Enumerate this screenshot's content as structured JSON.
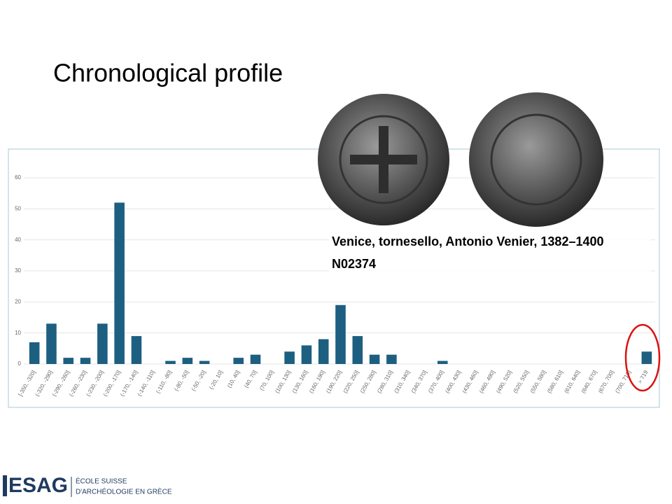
{
  "chart_data": {
    "type": "bar",
    "title": "Chronological profile",
    "categories": [
      "[-350, -320]",
      "(-320, -290]",
      "(-290, -260]",
      "(-260, -230]",
      "(-230, -200]",
      "(-200, -170]",
      "(-170, -140]",
      "(-140, -110]",
      "(-110, -80]",
      "(-80, -50]",
      "(-50, -20]",
      "(-20, 10]",
      "(10, 40]",
      "(40, 70]",
      "(70, 100]",
      "(100, 130]",
      "(130, 160]",
      "(160, 190]",
      "(190, 220]",
      "(220, 250]",
      "(250, 280]",
      "(280, 310]",
      "(310, 340]",
      "(340, 370]",
      "(370, 400]",
      "(400, 430]",
      "(430, 460]",
      "(460, 490]",
      "(490, 520]",
      "(520, 550]",
      "(550, 580]",
      "(580, 610]",
      "(610, 640]",
      "(640, 670]",
      "(670, 700]",
      "(700, 719]",
      "> 719"
    ],
    "values": [
      7,
      13,
      2,
      2,
      13,
      52,
      9,
      0,
      1,
      2,
      1,
      0,
      2,
      3,
      0,
      4,
      6,
      8,
      19,
      9,
      3,
      3,
      0,
      0,
      1,
      0,
      0,
      0,
      0,
      0,
      0,
      0,
      0,
      0,
      0,
      0,
      4
    ],
    "color": "#1d5f80",
    "ylim": [
      0,
      60
    ],
    "yticks": [
      0,
      10,
      20,
      30,
      40,
      50,
      60
    ],
    "grid": true,
    "annotations": [
      "Venice, tornesello, Antonio Venier, 1382–1400",
      "N02374"
    ]
  },
  "footer": {
    "logo": "ESAG",
    "line1": "ÉCOLE SUISSE",
    "line2": "D'ARCHÉOLOGIE EN GRÈCE"
  }
}
